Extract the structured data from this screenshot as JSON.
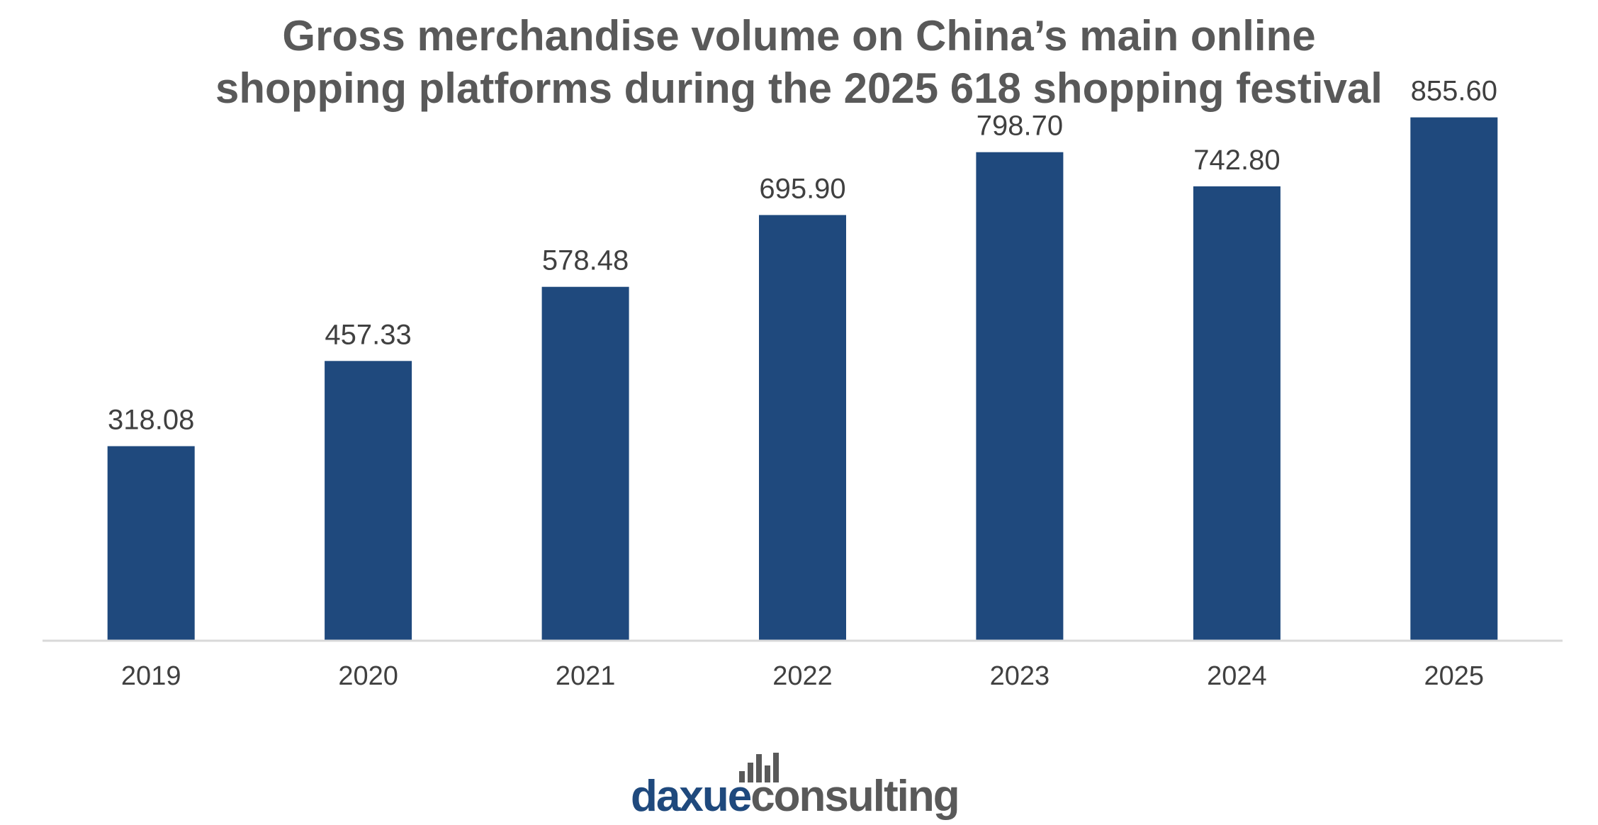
{
  "chart_data": {
    "type": "bar",
    "title_lines": [
      "Gross merchandise volume on China’s main online",
      "shopping platforms during the 2025 618 shopping festival"
    ],
    "categories": [
      "2019",
      "2020",
      "2021",
      "2022",
      "2023",
      "2024",
      "2025"
    ],
    "values": [
      318.08,
      457.33,
      578.48,
      695.9,
      798.7,
      742.8,
      855.6
    ],
    "value_labels": [
      "318.08",
      "457.33",
      "578.48",
      "695.90",
      "798.70",
      "742.80",
      "855.60"
    ],
    "xlabel": "",
    "ylabel": "",
    "ylim": [
      0,
      920
    ],
    "grid": false,
    "legend": "none",
    "colors": {
      "bar": "#1f497d",
      "axis": "#d9d9d9",
      "text": "#404040",
      "title": "#595959"
    }
  },
  "logo": {
    "part1": "daxue",
    "part2": "consulting",
    "colors": {
      "primary": "#1f497d",
      "secondary": "#595959"
    },
    "icon": "bar-chart-icon"
  }
}
